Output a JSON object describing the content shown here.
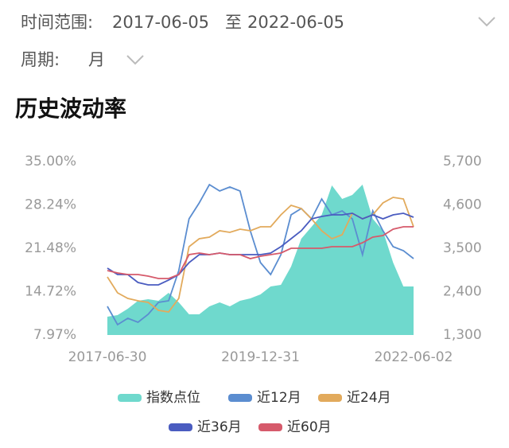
{
  "header": {
    "range_label": "时间范围:",
    "start": "2017-06-05",
    "separator": "至",
    "end": "2022-06-05",
    "period_label": "周期:",
    "period_value": "月"
  },
  "section_title": "历史波动率",
  "chart_data": {
    "type": "line",
    "categories": [
      "2017-06-30",
      null,
      null,
      null,
      null,
      null,
      null,
      null,
      null,
      null,
      null,
      null,
      null,
      null,
      null,
      "2019-12-31",
      null,
      null,
      null,
      null,
      null,
      null,
      null,
      null,
      null,
      null,
      null,
      null,
      null,
      null,
      "2022-06-02"
    ],
    "ylim": [
      7.97,
      35.0
    ],
    "yticks": [
      {
        "value": 7.97,
        "label": "7.97%"
      },
      {
        "value": 14.72,
        "label": "14.72%"
      },
      {
        "value": 21.48,
        "label": "21.48%"
      },
      {
        "value": 28.24,
        "label": "28.24%"
      },
      {
        "value": 35.0,
        "label": "35.00%"
      }
    ],
    "y2lim": [
      1300,
      5700
    ],
    "y2ticks": [
      {
        "value": 1300,
        "label": "1,300"
      },
      {
        "value": 2400,
        "label": "2,400"
      },
      {
        "value": 3500,
        "label": "3,500"
      },
      {
        "value": 4600,
        "label": "4,600"
      },
      {
        "value": 5700,
        "label": "5,700"
      }
    ],
    "series": [
      {
        "name": "指数点位",
        "color": "#6fd9cd",
        "axis": "y2",
        "style": "area",
        "values": [
          1764,
          1805,
          1966,
          2168,
          2208,
          2168,
          2370,
          2127,
          1825,
          1825,
          2026,
          2127,
          2026,
          2168,
          2228,
          2329,
          2531,
          2571,
          3035,
          3742,
          4044,
          4347,
          5094,
          4751,
          4852,
          5114,
          4246,
          3944,
          3136,
          2531,
          2531
        ]
      },
      {
        "name": "近12月",
        "color": "#5b8dd0",
        "values": [
          12.43,
          9.58,
          10.57,
          9.95,
          11.19,
          13.05,
          13.3,
          18.01,
          26.07,
          28.55,
          31.41,
          30.41,
          31.03,
          30.41,
          24.21,
          19.25,
          17.39,
          20.49,
          26.69,
          27.69,
          26.07,
          29.17,
          26.69,
          27.31,
          26.07,
          20.49,
          27.31,
          24.21,
          21.73,
          21.11,
          19.87
        ]
      },
      {
        "name": "近24月",
        "color": "#e2aa5c",
        "values": [
          17.02,
          14.54,
          13.67,
          13.3,
          13.05,
          11.81,
          11.57,
          13.67,
          21.73,
          22.97,
          23.22,
          24.21,
          23.97,
          24.46,
          24.21,
          24.83,
          24.83,
          26.69,
          28.18,
          27.69,
          26.07,
          24.21,
          22.97,
          23.59,
          26.94,
          26.07,
          26.69,
          28.55,
          29.42,
          29.17,
          24.83
        ]
      },
      {
        "name": "近36月",
        "color": "#4a5cc0",
        "values": [
          18.39,
          17.39,
          17.39,
          16.15,
          15.78,
          15.78,
          16.53,
          17.39,
          19.25,
          20.49,
          20.49,
          20.74,
          20.49,
          20.49,
          20.49,
          20.49,
          20.74,
          21.73,
          22.97,
          24.21,
          26.07,
          26.45,
          26.69,
          26.69,
          26.94,
          26.07,
          26.69,
          26.07,
          26.69,
          26.94,
          26.32
        ]
      },
      {
        "name": "近60月",
        "color": "#d65a6b",
        "values": [
          18.01,
          17.64,
          17.39,
          17.39,
          17.15,
          16.77,
          16.77,
          17.39,
          20.49,
          20.74,
          20.49,
          20.74,
          20.49,
          20.49,
          19.87,
          20.25,
          20.49,
          20.74,
          21.49,
          21.49,
          21.49,
          21.49,
          21.73,
          21.73,
          21.73,
          22.35,
          23.22,
          23.47,
          24.46,
          24.83,
          24.83
        ]
      }
    ]
  }
}
